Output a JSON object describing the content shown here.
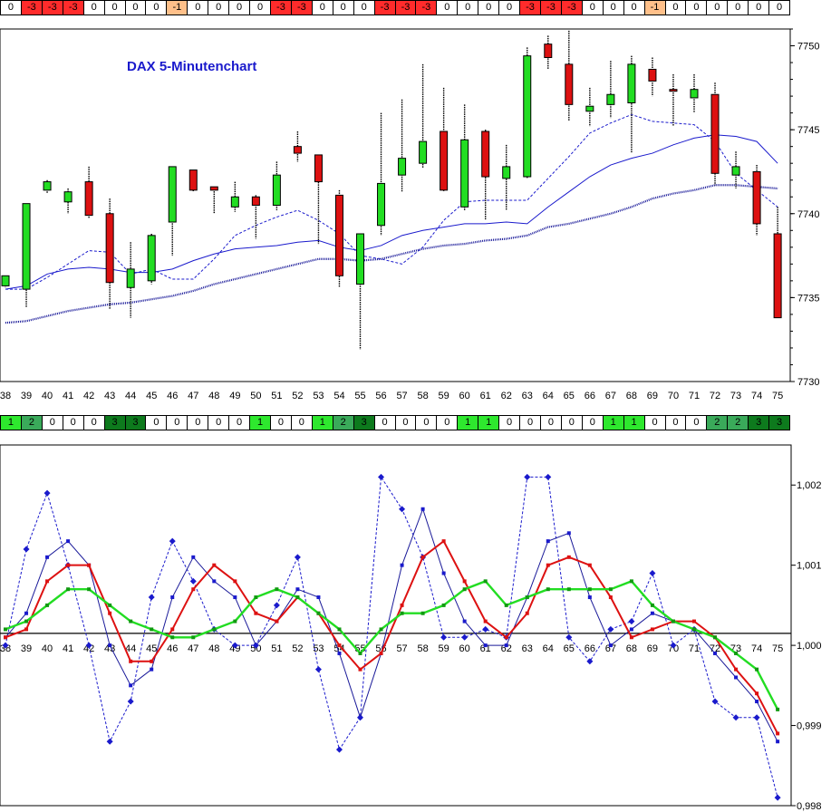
{
  "signal_rows": {
    "top": [
      {
        "v": "0",
        "c": "#ffffff"
      },
      {
        "v": "-3",
        "c": "#ff2b2b"
      },
      {
        "v": "-3",
        "c": "#ff2b2b"
      },
      {
        "v": "-3",
        "c": "#ff2b2b"
      },
      {
        "v": "0",
        "c": "#ffffff"
      },
      {
        "v": "0",
        "c": "#ffffff"
      },
      {
        "v": "0",
        "c": "#ffffff"
      },
      {
        "v": "0",
        "c": "#ffffff"
      },
      {
        "v": "-1",
        "c": "#ffc08a"
      },
      {
        "v": "0",
        "c": "#ffffff"
      },
      {
        "v": "0",
        "c": "#ffffff"
      },
      {
        "v": "0",
        "c": "#ffffff"
      },
      {
        "v": "0",
        "c": "#ffffff"
      },
      {
        "v": "-3",
        "c": "#ff2b2b"
      },
      {
        "v": "-3",
        "c": "#ff2b2b"
      },
      {
        "v": "0",
        "c": "#ffffff"
      },
      {
        "v": "0",
        "c": "#ffffff"
      },
      {
        "v": "0",
        "c": "#ffffff"
      },
      {
        "v": "-3",
        "c": "#ff2b2b"
      },
      {
        "v": "-3",
        "c": "#ff2b2b"
      },
      {
        "v": "-3",
        "c": "#ff2b2b"
      },
      {
        "v": "0",
        "c": "#ffffff"
      },
      {
        "v": "0",
        "c": "#ffffff"
      },
      {
        "v": "0",
        "c": "#ffffff"
      },
      {
        "v": "0",
        "c": "#ffffff"
      },
      {
        "v": "-3",
        "c": "#ff2b2b"
      },
      {
        "v": "-3",
        "c": "#ff2b2b"
      },
      {
        "v": "-3",
        "c": "#ff2b2b"
      },
      {
        "v": "0",
        "c": "#ffffff"
      },
      {
        "v": "0",
        "c": "#ffffff"
      },
      {
        "v": "0",
        "c": "#ffffff"
      },
      {
        "v": "-1",
        "c": "#ffc08a"
      },
      {
        "v": "0",
        "c": "#ffffff"
      },
      {
        "v": "0",
        "c": "#ffffff"
      },
      {
        "v": "0",
        "c": "#ffffff"
      },
      {
        "v": "0",
        "c": "#ffffff"
      },
      {
        "v": "0",
        "c": "#ffffff"
      },
      {
        "v": "0",
        "c": "#ffffff"
      }
    ],
    "middle": [
      {
        "v": "1",
        "c": "#2ee82e"
      },
      {
        "v": "2",
        "c": "#3aaa5a"
      },
      {
        "v": "0",
        "c": "#ffffff"
      },
      {
        "v": "0",
        "c": "#ffffff"
      },
      {
        "v": "0",
        "c": "#ffffff"
      },
      {
        "v": "3",
        "c": "#0d7a1d"
      },
      {
        "v": "3",
        "c": "#0d7a1d"
      },
      {
        "v": "0",
        "c": "#ffffff"
      },
      {
        "v": "0",
        "c": "#ffffff"
      },
      {
        "v": "0",
        "c": "#ffffff"
      },
      {
        "v": "0",
        "c": "#ffffff"
      },
      {
        "v": "0",
        "c": "#ffffff"
      },
      {
        "v": "1",
        "c": "#2ee82e"
      },
      {
        "v": "0",
        "c": "#ffffff"
      },
      {
        "v": "0",
        "c": "#ffffff"
      },
      {
        "v": "1",
        "c": "#2ee82e"
      },
      {
        "v": "2",
        "c": "#3aaa5a"
      },
      {
        "v": "3",
        "c": "#0d7a1d"
      },
      {
        "v": "0",
        "c": "#ffffff"
      },
      {
        "v": "0",
        "c": "#ffffff"
      },
      {
        "v": "0",
        "c": "#ffffff"
      },
      {
        "v": "0",
        "c": "#ffffff"
      },
      {
        "v": "1",
        "c": "#2ee82e"
      },
      {
        "v": "1",
        "c": "#2ee82e"
      },
      {
        "v": "0",
        "c": "#ffffff"
      },
      {
        "v": "0",
        "c": "#ffffff"
      },
      {
        "v": "0",
        "c": "#ffffff"
      },
      {
        "v": "0",
        "c": "#ffffff"
      },
      {
        "v": "0",
        "c": "#ffffff"
      },
      {
        "v": "1",
        "c": "#2ee82e"
      },
      {
        "v": "1",
        "c": "#2ee82e"
      },
      {
        "v": "0",
        "c": "#ffffff"
      },
      {
        "v": "0",
        "c": "#ffffff"
      },
      {
        "v": "0",
        "c": "#ffffff"
      },
      {
        "v": "2",
        "c": "#3aaa5a"
      },
      {
        "v": "2",
        "c": "#3aaa5a"
      },
      {
        "v": "3",
        "c": "#0d7a1d"
      },
      {
        "v": "3",
        "c": "#0d7a1d"
      }
    ]
  },
  "chart_data": [
    {
      "type": "candlestick",
      "title": "DAX 5-Minutenchart",
      "categories": [
        "38",
        "39",
        "40",
        "41",
        "42",
        "43",
        "44",
        "45",
        "46",
        "47",
        "48",
        "49",
        "50",
        "51",
        "52",
        "53",
        "54",
        "55",
        "56",
        "57",
        "58",
        "59",
        "60",
        "61",
        "62",
        "63",
        "64",
        "65",
        "66",
        "67",
        "68",
        "69",
        "70",
        "71",
        "72",
        "73",
        "74",
        "75"
      ],
      "ylim": [
        7730,
        7751
      ],
      "yticks": [
        "7730",
        "7735",
        "7740",
        "7745",
        "7750"
      ],
      "ohlc": [
        [
          7735.7,
          7736.3,
          7735.6,
          7736.3
        ],
        [
          7735.5,
          7740.6,
          7734.4,
          7740.6
        ],
        [
          7741.4,
          7742.0,
          7741.2,
          7741.9
        ],
        [
          7740.7,
          7741.5,
          7740.0,
          7741.3
        ],
        [
          7741.9,
          7742.8,
          7739.7,
          7739.9
        ],
        [
          7740.0,
          7740.9,
          7734.3,
          7735.9
        ],
        [
          7735.6,
          7738.3,
          7733.8,
          7736.7
        ],
        [
          7736.0,
          7738.8,
          7735.8,
          7738.7
        ],
        [
          7739.5,
          7742.8,
          7737.5,
          7742.8
        ],
        [
          7742.6,
          7742.5,
          7741.3,
          7741.4
        ],
        [
          7741.6,
          7741.6,
          7740.0,
          7741.4
        ],
        [
          7740.4,
          7741.9,
          7740.1,
          7741.0
        ],
        [
          7741.0,
          7741.1,
          7738.5,
          7740.5
        ],
        [
          7740.5,
          7743.1,
          7740.2,
          7742.3
        ],
        [
          7744.0,
          7744.9,
          7743.1,
          7743.6
        ],
        [
          7743.5,
          7743.5,
          7738.2,
          7741.9
        ],
        [
          7741.1,
          7741.4,
          7735.6,
          7736.3
        ],
        [
          7735.8,
          7738.8,
          7731.9,
          7738.8
        ],
        [
          7739.3,
          7746.0,
          7738.7,
          7741.8
        ],
        [
          7742.3,
          7746.8,
          7741.3,
          7743.3
        ],
        [
          7743.0,
          7748.9,
          7742.7,
          7744.3
        ],
        [
          7744.9,
          7747.5,
          7741.3,
          7741.4
        ],
        [
          7740.4,
          7746.5,
          7740.2,
          7744.4
        ],
        [
          7744.9,
          7745.0,
          7739.6,
          7742.2
        ],
        [
          7742.1,
          7744.1,
          7740.2,
          7742.8
        ],
        [
          7742.2,
          7749.9,
          7742.1,
          7749.4
        ],
        [
          7750.1,
          7750.6,
          7748.6,
          7749.3
        ],
        [
          7748.9,
          7750.9,
          7745.5,
          7746.5
        ],
        [
          7746.1,
          7747.5,
          7745.2,
          7746.4
        ],
        [
          7746.5,
          7749.1,
          7745.7,
          7747.1
        ],
        [
          7746.6,
          7749.4,
          7743.6,
          7748.9
        ],
        [
          7748.6,
          7749.3,
          7747.0,
          7747.9
        ],
        [
          7747.4,
          7748.3,
          7745.2,
          7747.3
        ],
        [
          7746.9,
          7748.3,
          7746.0,
          7747.4
        ],
        [
          7747.1,
          7747.8,
          7741.7,
          7742.4
        ],
        [
          7742.3,
          7743.7,
          7741.5,
          7742.8
        ],
        [
          7742.5,
          7742.9,
          7738.7,
          7739.4
        ],
        [
          7738.8,
          7740.4,
          7733.8,
          7733.8
        ]
      ],
      "series": [
        {
          "values": [
            7735.5,
            7735.5,
            7736.2,
            7737.0,
            7737.8,
            7737.7,
            7736.4,
            7736.7,
            7736.1,
            7736.1,
            7737.3,
            7738.7,
            7739.3,
            7739.8,
            7740.2,
            7739.6,
            7738.8,
            7737.5,
            7737.3,
            7737.0,
            7738.0,
            7739.6,
            7740.7,
            7740.8,
            7740.8,
            7740.8,
            7742.1,
            7743.4,
            7744.8,
            7745.4,
            7745.9,
            7745.5,
            7745.4,
            7745.3,
            7744.3,
            7742.4,
            7741.4,
            7740.4
          ]
        },
        {
          "values": [
            7735.5,
            7735.7,
            7736.4,
            7736.7,
            7736.8,
            7736.7,
            7736.5,
            7736.5,
            7736.7,
            7737.2,
            7737.6,
            7737.9,
            7738.0,
            7738.1,
            7738.3,
            7738.4,
            7738.0,
            7737.8,
            7738.1,
            7738.7,
            7739.0,
            7739.2,
            7739.4,
            7739.4,
            7739.5,
            7739.4,
            7740.4,
            7741.3,
            7742.2,
            7742.9,
            7743.3,
            7743.6,
            7744.1,
            7744.5,
            7744.7,
            7744.6,
            7744.3,
            7743.0
          ]
        },
        {
          "values": [
            7733.5,
            7733.6,
            7733.9,
            7734.2,
            7734.4,
            7734.6,
            7734.7,
            7734.9,
            7735.1,
            7735.4,
            7735.8,
            7736.1,
            7736.4,
            7736.7,
            7737.0,
            7737.3,
            7737.3,
            7737.2,
            7737.3,
            7737.6,
            7737.9,
            7738.1,
            7738.2,
            7738.4,
            7738.5,
            7738.7,
            7739.2,
            7739.4,
            7739.7,
            7740.0,
            7740.4,
            7740.9,
            7741.2,
            7741.4,
            7741.7,
            7741.7,
            7741.6,
            7741.5
          ]
        }
      ]
    },
    {
      "type": "line",
      "categories": [
        "38",
        "39",
        "40",
        "41",
        "42",
        "43",
        "44",
        "45",
        "46",
        "47",
        "48",
        "49",
        "50",
        "51",
        "52",
        "53",
        "54",
        "55",
        "56",
        "57",
        "58",
        "59",
        "60",
        "61",
        "62",
        "63",
        "64",
        "65",
        "66",
        "67",
        "68",
        "69",
        "70",
        "71",
        "72",
        "73",
        "74",
        "75"
      ],
      "ylim": [
        0.998,
        1.0025
      ],
      "yticks": [
        "0,998",
        "0,999",
        "1,000",
        "1,001",
        "1,002"
      ],
      "reference_line": 1.00015,
      "series": [
        {
          "values": [
            1.0,
            1.0012,
            1.0019,
            1.001,
            1.0,
            0.9988,
            0.9993,
            1.0006,
            1.0013,
            1.0008,
            1.0002,
            1.0,
            1.0,
            1.0005,
            1.0011,
            0.9997,
            0.9987,
            0.9991,
            1.0021,
            1.0017,
            1.0011,
            1.0001,
            1.0001,
            1.0002,
            1.0001,
            1.0021,
            1.0021,
            1.0001,
            0.9998,
            1.0002,
            1.0003,
            1.0009,
            1.0,
            1.0002,
            0.9993,
            0.9991,
            0.9991,
            0.9981
          ]
        },
        {
          "values": [
            1.0001,
            1.0004,
            1.0011,
            1.0013,
            1.001,
            1.0,
            0.9995,
            0.9997,
            1.0006,
            1.0011,
            1.0008,
            1.0006,
            1.0,
            1.0003,
            1.0007,
            1.0006,
            0.9999,
            0.9991,
            0.9999,
            1.001,
            1.0017,
            1.0009,
            1.0003,
            1.0,
            1.0,
            1.0006,
            1.0013,
            1.0014,
            1.0006,
            1.0,
            1.0002,
            1.0004,
            1.0003,
            1.0002,
            0.9999,
            0.9996,
            0.9993,
            0.9988
          ]
        },
        {
          "values": [
            1.0001,
            1.0002,
            1.0008,
            1.001,
            1.001,
            1.0004,
            0.9998,
            0.9998,
            1.0002,
            1.0007,
            1.001,
            1.0008,
            1.0004,
            1.0003,
            1.0006,
            1.0004,
            1.0,
            0.9997,
            0.9999,
            1.0005,
            1.0011,
            1.0013,
            1.0008,
            1.0003,
            1.0001,
            1.0004,
            1.001,
            1.0011,
            1.001,
            1.0006,
            1.0001,
            1.0002,
            1.0003,
            1.0003,
            1.0001,
            0.9997,
            0.9994,
            0.9989
          ]
        },
        {
          "values": [
            1.0002,
            1.0003,
            1.0005,
            1.0007,
            1.0007,
            1.0005,
            1.0003,
            1.0002,
            1.0001,
            1.0001,
            1.0002,
            1.0003,
            1.0006,
            1.0007,
            1.0006,
            1.0004,
            1.0002,
            0.9999,
            1.0002,
            1.0004,
            1.0004,
            1.0005,
            1.0007,
            1.0008,
            1.0005,
            1.0006,
            1.0007,
            1.0007,
            1.0007,
            1.0007,
            1.0008,
            1.0005,
            1.0003,
            1.0002,
            1.0001,
            0.9999,
            0.9997,
            0.9992
          ]
        }
      ]
    }
  ]
}
